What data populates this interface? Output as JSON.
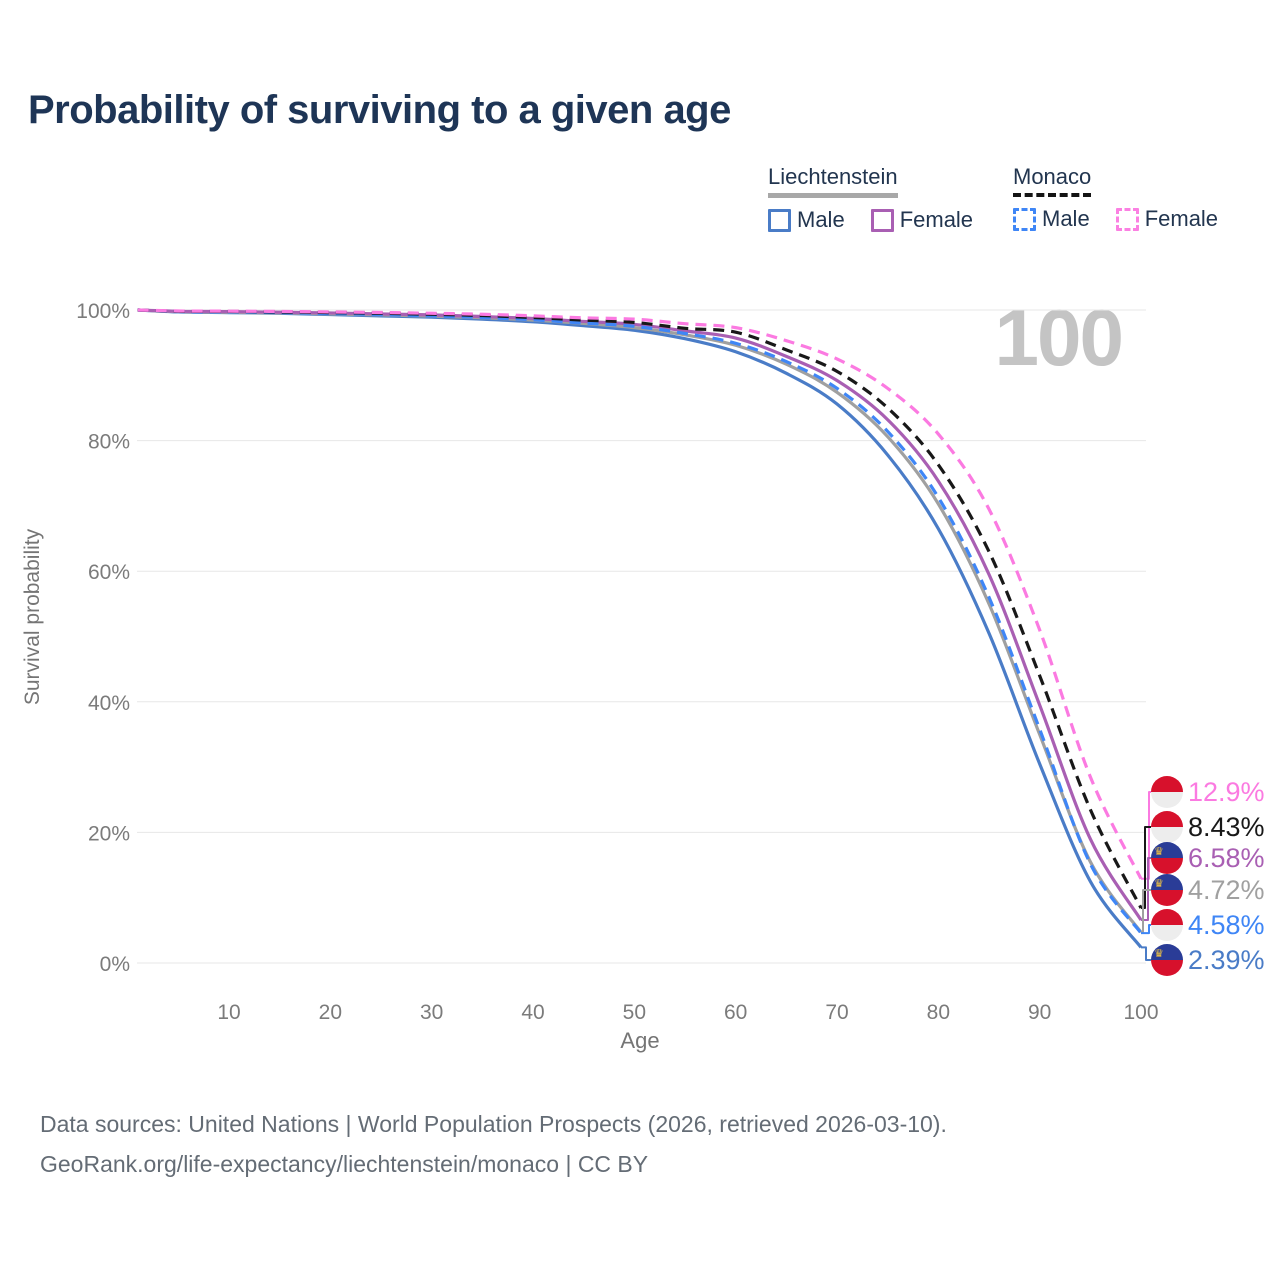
{
  "page": {
    "title": "Probability of surviving to a given age",
    "age_counter": "100"
  },
  "legend": {
    "groups": [
      {
        "name": "Liechtenstein",
        "line_style": "solid",
        "line_color": "#a8a8a8",
        "items": [
          {
            "label": "Male",
            "color": "#4a7cc7",
            "dashed": false
          },
          {
            "label": "Female",
            "color": "#a95fb3",
            "dashed": false
          }
        ]
      },
      {
        "name": "Monaco",
        "line_style": "dashed",
        "line_color": "#141414",
        "items": [
          {
            "label": "Male",
            "color": "#3f86f6",
            "dashed": true
          },
          {
            "label": "Female",
            "color": "#fb80e2",
            "dashed": true
          }
        ]
      }
    ]
  },
  "chart_data": {
    "type": "line",
    "title": "Probability of surviving to a given age",
    "xlabel": "Age",
    "ylabel": "Survival probability",
    "xlim": [
      1,
      100
    ],
    "ylim": [
      0,
      100
    ],
    "grid": "horizontal-only",
    "legend_position": "top-right",
    "x_ticks": [
      10,
      20,
      30,
      40,
      50,
      60,
      70,
      80,
      90,
      100
    ],
    "y_ticks": [
      {
        "label": "100%",
        "value": 100
      },
      {
        "label": "80%",
        "value": 80
      },
      {
        "label": "60%",
        "value": 60
      },
      {
        "label": "40%",
        "value": 40
      },
      {
        "label": "20%",
        "value": 20
      },
      {
        "label": "0%",
        "value": 0
      }
    ],
    "x": [
      1,
      5,
      10,
      15,
      20,
      25,
      30,
      35,
      40,
      45,
      50,
      55,
      60,
      65,
      70,
      75,
      80,
      85,
      90,
      95,
      100
    ],
    "series": [
      {
        "name": "Liechtenstein Male",
        "country": "Liechtenstein",
        "sex": "Male",
        "color": "#4a7cc7",
        "dashed": false,
        "flag": "liechtenstein",
        "end_label": "2.39%",
        "values": [
          100,
          99.7,
          99.6,
          99.5,
          99.3,
          99.1,
          98.9,
          98.6,
          98.2,
          97.6,
          96.9,
          95.6,
          93.6,
          90.3,
          85.6,
          77.8,
          66.5,
          50.5,
          30.5,
          12.5,
          2.39
        ]
      },
      {
        "name": "Liechtenstein",
        "country": "Liechtenstein",
        "sex": "Both",
        "color": "#a0a0a0",
        "dashed": false,
        "flag": "liechtenstein",
        "end_label": "4.72%",
        "values": [
          100,
          99.75,
          99.65,
          99.55,
          99.4,
          99.25,
          99.05,
          98.8,
          98.45,
          97.95,
          97.3,
          96.2,
          94.6,
          91.7,
          87.4,
          80.6,
          70.3,
          55.0,
          35.0,
          15.5,
          4.72
        ]
      },
      {
        "name": "Liechtenstein Female",
        "country": "Liechtenstein",
        "sex": "Female",
        "color": "#a95fb3",
        "dashed": false,
        "flag": "liechtenstein",
        "end_label": "6.58%",
        "values": [
          100,
          99.8,
          99.75,
          99.65,
          99.55,
          99.4,
          99.25,
          99.0,
          98.7,
          98.25,
          97.8,
          96.8,
          95.7,
          92.9,
          89.2,
          83.2,
          73.8,
          59.5,
          39.5,
          19.0,
          6.58
        ]
      },
      {
        "name": "Monaco Male",
        "country": "Monaco",
        "sex": "Male",
        "color": "#3f86f6",
        "dashed": true,
        "flag": "monaco",
        "end_label": "4.58%",
        "values": [
          100,
          99.75,
          99.7,
          99.6,
          99.45,
          99.3,
          99.1,
          98.85,
          98.5,
          98.0,
          97.5,
          96.4,
          94.9,
          92.1,
          88.0,
          81.4,
          71.3,
          56.0,
          35.8,
          15.2,
          4.58
        ]
      },
      {
        "name": "Monaco",
        "country": "Monaco",
        "sex": "Both",
        "color": "#181818",
        "dashed": true,
        "flag": "monaco",
        "end_label": "8.43%",
        "values": [
          100,
          99.8,
          99.78,
          99.7,
          99.6,
          99.5,
          99.35,
          99.15,
          98.85,
          98.45,
          98.1,
          97.2,
          96.6,
          93.9,
          90.6,
          85.0,
          76.3,
          63.0,
          44.0,
          23.5,
          8.43
        ]
      },
      {
        "name": "Monaco Female",
        "country": "Monaco",
        "sex": "Female",
        "color": "#fb7ae1",
        "dashed": true,
        "flag": "monaco",
        "end_label": "12.9%",
        "values": [
          100,
          99.85,
          99.82,
          99.78,
          99.7,
          99.62,
          99.5,
          99.35,
          99.1,
          98.8,
          98.6,
          97.9,
          97.3,
          95.3,
          92.5,
          88.0,
          81.0,
          69.5,
          51.0,
          28.5,
          12.9
        ]
      }
    ],
    "flag_colors": {
      "monaco": {
        "top": "#d7112c",
        "bottom": "#ededed"
      },
      "liechtenstein": {
        "top": "#2a3c97",
        "bottom": "#d7112c",
        "crown": "#f4c63f"
      }
    }
  },
  "footer": {
    "line1": "Data sources: United Nations | World Population Prospects (2026, retrieved 2026-03-10).",
    "line2": "GeoRank.org/life-expectancy/liechtenstein/monaco | CC BY"
  }
}
